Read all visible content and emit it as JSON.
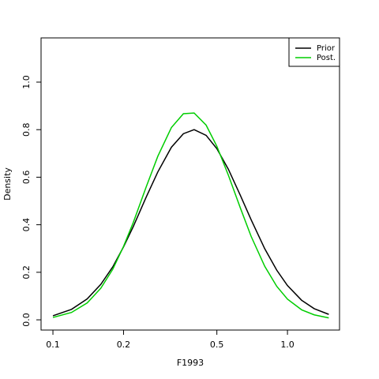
{
  "chart_data": {
    "type": "line",
    "x_label": "F1993",
    "y_label": "Density",
    "x": [
      0.1,
      0.12,
      0.14,
      0.16,
      0.18,
      0.2,
      0.22,
      0.25,
      0.28,
      0.32,
      0.36,
      0.4,
      0.45,
      0.5,
      0.56,
      0.63,
      0.7,
      0.8,
      0.9,
      1.0,
      1.15,
      1.3,
      1.5
    ],
    "series": [
      {
        "name": "Prior",
        "color": "#000000",
        "values": [
          0.017,
          0.044,
          0.088,
          0.149,
          0.223,
          0.307,
          0.392,
          0.517,
          0.622,
          0.726,
          0.783,
          0.8,
          0.776,
          0.72,
          0.633,
          0.523,
          0.421,
          0.299,
          0.209,
          0.144,
          0.082,
          0.047,
          0.023
        ]
      },
      {
        "name": "Post.",
        "color": "#00cd00",
        "values": [
          0.01,
          0.031,
          0.071,
          0.133,
          0.213,
          0.309,
          0.409,
          0.56,
          0.688,
          0.809,
          0.867,
          0.87,
          0.819,
          0.73,
          0.608,
          0.47,
          0.351,
          0.225,
          0.141,
          0.087,
          0.042,
          0.021,
          0.008
        ]
      }
    ],
    "xlog": true,
    "xlim": [
      0.089,
      1.667
    ],
    "xticks": [
      {
        "value": 0.1,
        "label": "0.1"
      },
      {
        "value": 0.2,
        "label": "0.2"
      },
      {
        "value": 0.5,
        "label": "0.5"
      },
      {
        "value": 1,
        "label": "1.0"
      }
    ],
    "ylim": [
      -0.043,
      1.186
    ],
    "yticks": [
      {
        "value": 0,
        "label": "0.0"
      },
      {
        "value": 0.2,
        "label": "0.2"
      },
      {
        "value": 0.4,
        "label": "0.4"
      },
      {
        "value": 0.6,
        "label": "0.6"
      },
      {
        "value": 0.8,
        "label": "0.8"
      },
      {
        "value": 1,
        "label": "1.0"
      }
    ],
    "legend": "top-right"
  }
}
